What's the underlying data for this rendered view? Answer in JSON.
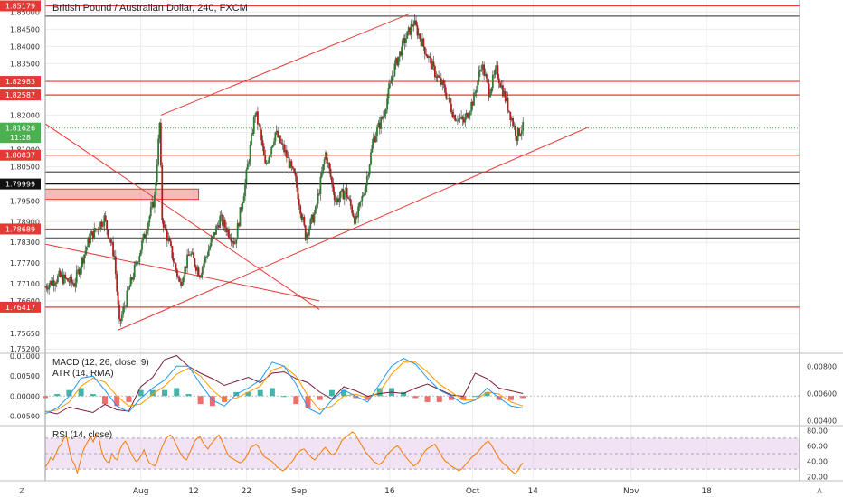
{
  "chart_data": [
    {
      "type": "candlestick",
      "title": "British Pound / Australian Dollar, 240, FXCM",
      "price_axis": {
        "ticks": [
          "1.85000",
          "1.84500",
          "1.84000",
          "1.83500",
          "1.82000",
          "1.81500",
          "1.81000",
          "1.80500",
          "1.79500",
          "1.78900",
          "1.78300",
          "1.77700",
          "1.77100",
          "1.76600",
          "1.75650",
          "1.75200"
        ],
        "tick_values": [
          1.85,
          1.845,
          1.84,
          1.835,
          1.82,
          1.815,
          1.81,
          1.805,
          1.795,
          1.789,
          1.783,
          1.777,
          1.771,
          1.766,
          1.7565,
          1.752
        ],
        "ylim": [
          1.751,
          1.8535
        ]
      },
      "price_tags": [
        {
          "text": "1.85179",
          "value": 1.85179,
          "color": "#e53935"
        },
        {
          "text": "1.82983",
          "value": 1.82983,
          "color": "#e53935"
        },
        {
          "text": "1.82587",
          "value": 1.82587,
          "color": "#e53935"
        },
        {
          "text": "1.81626",
          "value": 1.81626,
          "color": "#4caf50"
        },
        {
          "text": "11:28",
          "value": 1.8135,
          "color": "#4caf50"
        },
        {
          "text": "1.80837",
          "value": 1.80837,
          "color": "#e53935"
        },
        {
          "text": "1.79999",
          "value": 1.79999,
          "color": "#111111"
        },
        {
          "text": "1.78689",
          "value": 1.78689,
          "color": "#e53935"
        },
        {
          "text": "1.76417",
          "value": 1.76417,
          "color": "#e53935"
        }
      ],
      "horizontal_levels": [
        {
          "value": 1.85179,
          "color": "#e53935"
        },
        {
          "value": 1.8488,
          "color": "#555555"
        },
        {
          "value": 1.82983,
          "color": "#e53935"
        },
        {
          "value": 1.82587,
          "color": "#e53935"
        },
        {
          "value": 1.80837,
          "color": "#e53935"
        },
        {
          "value": 1.8035,
          "color": "#555555"
        },
        {
          "value": 1.79999,
          "color": "#111111"
        },
        {
          "value": 1.78689,
          "color": "#e53935"
        },
        {
          "value": 1.7843,
          "color": "#555555"
        },
        {
          "value": 1.76417,
          "color": "#e53935"
        }
      ],
      "time_axis": {
        "labels": [
          "Aug",
          "12",
          "22",
          "Sep",
          "16",
          "Oct",
          "14",
          "Nov",
          "18"
        ],
        "positions": [
          38,
          59,
          80,
          101,
          137,
          170,
          194,
          233,
          263
        ],
        "xlim": [
          0,
          300
        ]
      },
      "zone": {
        "x": [
          0,
          61
        ],
        "y": [
          1.7955,
          1.7985
        ]
      },
      "trendlines": [
        {
          "x": [
            0,
            109
          ],
          "y": [
            1.8175,
            1.7635
          ]
        },
        {
          "x": [
            0,
            109
          ],
          "y": [
            1.7825,
            1.766
          ]
        },
        {
          "x": [
            29,
            216
          ],
          "y": [
            1.7575,
            1.8165
          ]
        },
        {
          "x": [
            46,
            145
          ],
          "y": [
            1.82,
            1.8495
          ]
        }
      ],
      "anchors": [
        [
          0,
          1.77
        ],
        [
          6,
          1.773
        ],
        [
          12,
          1.771
        ],
        [
          18,
          1.784
        ],
        [
          24,
          1.79
        ],
        [
          28,
          1.779
        ],
        [
          30,
          1.759
        ],
        [
          34,
          1.77
        ],
        [
          38,
          1.78
        ],
        [
          41,
          1.788
        ],
        [
          44,
          1.796
        ],
        [
          46,
          1.8175
        ],
        [
          47,
          1.79
        ],
        [
          50,
          1.782
        ],
        [
          54,
          1.771
        ],
        [
          58,
          1.78
        ],
        [
          62,
          1.774
        ],
        [
          66,
          1.782
        ],
        [
          70,
          1.79
        ],
        [
          76,
          1.783
        ],
        [
          80,
          1.8
        ],
        [
          84,
          1.821
        ],
        [
          86,
          1.815
        ],
        [
          88,
          1.805
        ],
        [
          92,
          1.815
        ],
        [
          96,
          1.809
        ],
        [
          100,
          1.801
        ],
        [
          104,
          1.785
        ],
        [
          108,
          1.792
        ],
        [
          112,
          1.809
        ],
        [
          116,
          1.795
        ],
        [
          120,
          1.798
        ],
        [
          124,
          1.789
        ],
        [
          128,
          1.8
        ],
        [
          131,
          1.813
        ],
        [
          135,
          1.82
        ],
        [
          139,
          1.833
        ],
        [
          143,
          1.841
        ],
        [
          147,
          1.847
        ],
        [
          151,
          1.84
        ],
        [
          155,
          1.833
        ],
        [
          159,
          1.828
        ],
        [
          163,
          1.82
        ],
        [
          167,
          1.818
        ],
        [
          171,
          1.825
        ],
        [
          174,
          1.835
        ],
        [
          177,
          1.827
        ],
        [
          180,
          1.833
        ],
        [
          183,
          1.826
        ],
        [
          186,
          1.819
        ],
        [
          188,
          1.814
        ],
        [
          190,
          1.8163
        ]
      ]
    },
    {
      "type": "line",
      "label": "MACD (12, 26, close, 9)",
      "label2": "ATR (14, RMA)",
      "left_ticks": [
        "0.01000",
        "0.00500",
        "0.00000",
        "-0.00500"
      ],
      "left_values": [
        0.01,
        0.005,
        0.0,
        -0.005
      ],
      "left_ylim": [
        -0.0072,
        0.0105
      ],
      "right_ticks": [
        "0.00800",
        "0.00600",
        "0.00400"
      ],
      "right_values": [
        0.008,
        0.006,
        0.004
      ],
      "right_ylim": [
        0.0037,
        0.0089
      ],
      "series": [
        {
          "role": "macd",
          "color": "#2196f3"
        },
        {
          "role": "signal",
          "color": "#ff9800"
        },
        {
          "role": "histogram",
          "colors": [
            "#26a69a",
            "#ef5350"
          ]
        },
        {
          "role": "atr",
          "color": "#7b1f3a"
        }
      ],
      "macd": [
        -0.0045,
        -0.003,
        0.0,
        0.0045,
        0.005,
        0.0015,
        -0.0025,
        -0.004,
        -0.0005,
        0.002,
        0.004,
        0.0075,
        0.0075,
        0.003,
        -0.001,
        -0.0025,
        0.0005,
        0.002,
        0.004,
        0.0085,
        0.0075,
        0.003,
        -0.003,
        -0.0045,
        -0.001,
        0.0015,
        0.0,
        -0.0015,
        0.003,
        0.0075,
        0.0095,
        0.008,
        0.0045,
        0.0015,
        0.0,
        -0.002,
        -0.001,
        0.002,
        -0.0005,
        -0.0025,
        -0.003
      ],
      "signal": [
        -0.004,
        -0.0035,
        -0.0015,
        0.0025,
        0.0045,
        0.0035,
        0.0,
        -0.0025,
        -0.002,
        0.0005,
        0.0025,
        0.0055,
        0.007,
        0.005,
        0.0015,
        -0.001,
        -0.0005,
        0.001,
        0.0025,
        0.0065,
        0.0075,
        0.005,
        0.0,
        -0.0035,
        -0.0025,
        0.0,
        0.0005,
        -0.0005,
        0.001,
        0.0055,
        0.0085,
        0.0085,
        0.006,
        0.003,
        0.001,
        -0.001,
        -0.001,
        0.001,
        0.0005,
        -0.0015,
        -0.0025
      ],
      "atr": [
        0.0047,
        0.0045,
        0.005,
        0.0048,
        0.0046,
        0.0052,
        0.0048,
        0.0047,
        0.0065,
        0.0072,
        0.0085,
        0.0088,
        0.008,
        0.0075,
        0.0071,
        0.0066,
        0.0069,
        0.0072,
        0.0068,
        0.0075,
        0.0076,
        0.0071,
        0.0068,
        0.0061,
        0.0056,
        0.0065,
        0.0062,
        0.0058,
        0.006,
        0.0061,
        0.006,
        0.0064,
        0.0067,
        0.0063,
        0.0059,
        0.0058,
        0.0075,
        0.0071,
        0.0064,
        0.0062,
        0.006
      ]
    },
    {
      "type": "line",
      "label": "RSI (14, close)",
      "right_ticks": [
        "80.00",
        "60.00",
        "40.00",
        "20.00"
      ],
      "right_values": [
        80,
        60,
        40,
        20
      ],
      "ylim": [
        15,
        85
      ],
      "band": [
        30,
        70
      ],
      "midline": 50,
      "band_color": "#e1bee7",
      "line_color": "#f57c00",
      "values": [
        32,
        38,
        45,
        42,
        50,
        58,
        62,
        70,
        72,
        55,
        42,
        36,
        25,
        38,
        52,
        60,
        66,
        72,
        65,
        75,
        72,
        55,
        45,
        40,
        38,
        50,
        44,
        42,
        55,
        62,
        66,
        60,
        52,
        45,
        40,
        42,
        48,
        55,
        45,
        38,
        36,
        34,
        40,
        52,
        60,
        68,
        72,
        74,
        70,
        62,
        55,
        48,
        44,
        42,
        50,
        58,
        66,
        70,
        72,
        65,
        60,
        56,
        62,
        66,
        70,
        74,
        68,
        60,
        52,
        46,
        44,
        42,
        40,
        38,
        40,
        44,
        50,
        58,
        60,
        62,
        58,
        52,
        46,
        44,
        42,
        40,
        36,
        32,
        30,
        28,
        30,
        34,
        38,
        42,
        48,
        52,
        55,
        56,
        52,
        48,
        44,
        42,
        46,
        50,
        55,
        58,
        54,
        50,
        48,
        52,
        58,
        66,
        70,
        72,
        75,
        78,
        76,
        70,
        64,
        58,
        52,
        48,
        44,
        40,
        38,
        36,
        38,
        42,
        48,
        52,
        55,
        58,
        60,
        56,
        50,
        46,
        42,
        38,
        34,
        36,
        40,
        46,
        52,
        56,
        58,
        60,
        62,
        56,
        50,
        44,
        40,
        38,
        34,
        32,
        30,
        28,
        30,
        34,
        38,
        42,
        46,
        48,
        52,
        56,
        60,
        64,
        66,
        62,
        56,
        50,
        44,
        40,
        36,
        34,
        30,
        27,
        24,
        28,
        34,
        38
      ]
    }
  ],
  "footer": {
    "left_glyph": "Z",
    "right_glyph": "A"
  }
}
